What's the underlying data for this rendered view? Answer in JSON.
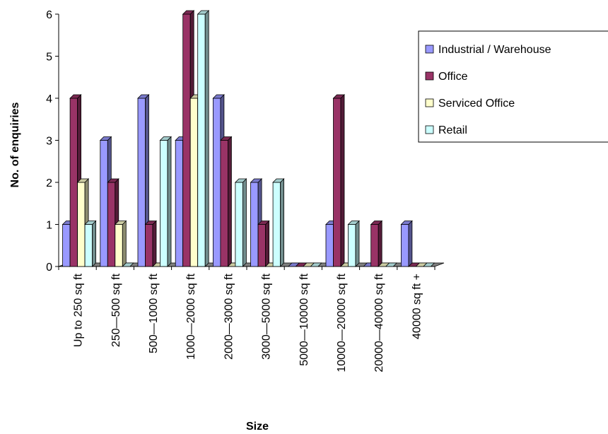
{
  "chart_data": {
    "type": "bar",
    "title": "",
    "xlabel": "Size",
    "ylabel": "No. of enquiries",
    "ylim": [
      0,
      6
    ],
    "yticks": [
      0,
      1,
      2,
      3,
      4,
      5,
      6
    ],
    "categories": [
      "Up to 250 sq ft",
      "250—500 sq ft",
      "500—1000 sq ft",
      "1000—2000 sq ft",
      "2000—3000 sq ft",
      "3000—5000 sq ft",
      "5000—10000 sq ft",
      "10000—20000 sq ft",
      "20000—40000 sq ft",
      "40000 sq ft +"
    ],
    "series": [
      {
        "name": "Industrial / Warehouse",
        "color": "#9999ff",
        "values": [
          1,
          3,
          4,
          3,
          4,
          2,
          0,
          1,
          0,
          1
        ]
      },
      {
        "name": "Office",
        "color": "#993366",
        "values": [
          4,
          2,
          1,
          6,
          3,
          1,
          0,
          4,
          1,
          0
        ]
      },
      {
        "name": "Serviced Office",
        "color": "#ffffcc",
        "values": [
          2,
          1,
          0,
          4,
          0,
          0,
          0,
          0,
          0,
          0
        ]
      },
      {
        "name": "Retail",
        "color": "#ccffff",
        "values": [
          1,
          0,
          3,
          6,
          2,
          2,
          0,
          1,
          0,
          0
        ]
      }
    ],
    "grid": false,
    "legend": "right"
  }
}
